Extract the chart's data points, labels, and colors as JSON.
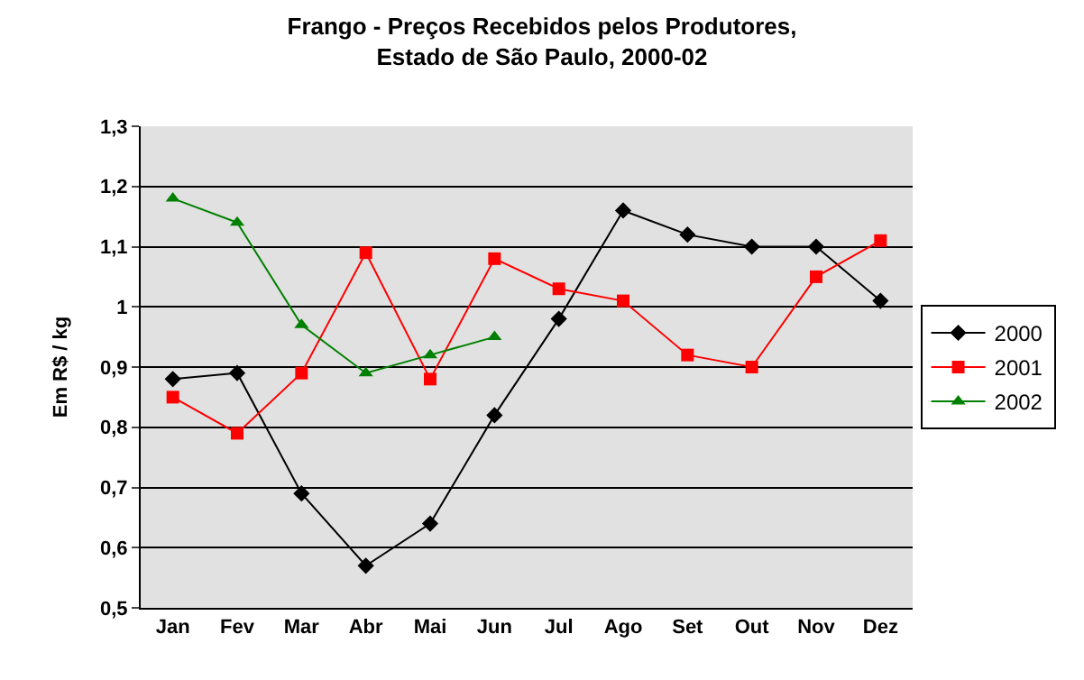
{
  "chart_data": {
    "type": "line",
    "title": "Frango - Preços Recebidos pelos Produtores,\nEstado de São Paulo, 2000-02",
    "ylabel": "Em R$ / kg",
    "categories": [
      "Jan",
      "Fev",
      "Mar",
      "Abr",
      "Mai",
      "Jun",
      "Jul",
      "Ago",
      "Set",
      "Out",
      "Nov",
      "Dez"
    ],
    "series": [
      {
        "name": "2000",
        "color": "#000000",
        "marker": "diamond",
        "values": [
          0.88,
          0.89,
          0.69,
          0.57,
          0.64,
          0.82,
          0.98,
          1.16,
          1.12,
          1.1,
          1.1,
          1.01
        ]
      },
      {
        "name": "2001",
        "color": "#ff0000",
        "marker": "square",
        "values": [
          0.85,
          0.79,
          0.89,
          1.09,
          0.88,
          1.08,
          1.03,
          1.01,
          0.92,
          0.9,
          1.05,
          1.11
        ]
      },
      {
        "name": "2002",
        "color": "#008000",
        "marker": "triangle",
        "values": [
          1.18,
          1.14,
          0.97,
          0.89,
          0.92,
          0.95,
          null,
          null,
          null,
          null,
          null,
          null
        ]
      }
    ],
    "ylim": [
      0.5,
      1.3
    ],
    "yticks": [
      {
        "value": 0.5,
        "label": "0,5"
      },
      {
        "value": 0.6,
        "label": "0,6"
      },
      {
        "value": 0.7,
        "label": "0,7"
      },
      {
        "value": 0.8,
        "label": "0,8"
      },
      {
        "value": 0.9,
        "label": "0,9"
      },
      {
        "value": 1,
        "label": "1"
      },
      {
        "value": 1.1,
        "label": "1,1"
      },
      {
        "value": 1.2,
        "label": "1,2"
      },
      {
        "value": 1.3,
        "label": "1,3"
      }
    ],
    "grid": "y",
    "legend": "right",
    "line_style": "solid"
  }
}
